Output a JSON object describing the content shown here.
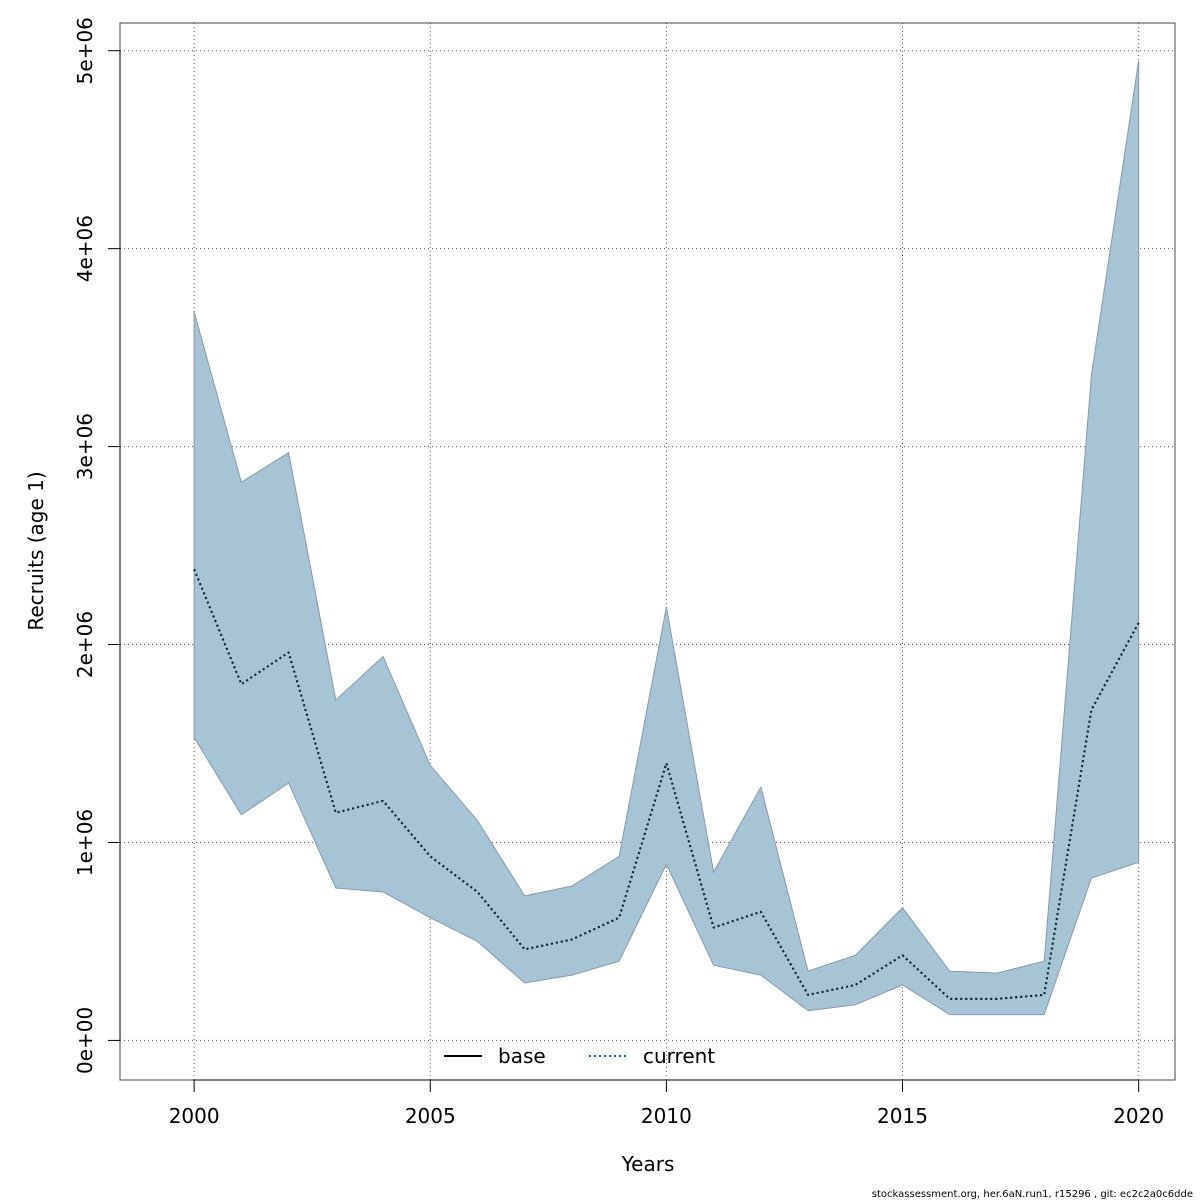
{
  "chart_data": {
    "type": "area",
    "title": "",
    "xlabel": "Years",
    "ylabel": "Recruits (age 1)",
    "xlim": [
      1998.43,
      2020.77
    ],
    "ylim": [
      -200000,
      5140000
    ],
    "grid": true,
    "x_ticks": [
      2000,
      2005,
      2010,
      2015,
      2020
    ],
    "x_tick_labels": [
      "2000",
      "2005",
      "2010",
      "2015",
      "2020"
    ],
    "y_ticks": [
      0,
      1000000,
      2000000,
      3000000,
      4000000,
      5000000
    ],
    "y_tick_labels": [
      "0e+00",
      "1e+06",
      "2e+06",
      "3e+06",
      "4e+06",
      "5e+06"
    ],
    "years": [
      2000,
      2001,
      2002,
      2003,
      2004,
      2005,
      2006,
      2007,
      2008,
      2009,
      2010,
      2011,
      2012,
      2013,
      2014,
      2015,
      2016,
      2017,
      2018,
      2019,
      2020
    ],
    "band": {
      "color": "#a6c4d5",
      "edge_color": "#8899a6",
      "upper": [
        3680000,
        2820000,
        2970000,
        1720000,
        1940000,
        1390000,
        1110000,
        730000,
        780000,
        930000,
        2190000,
        850000,
        1280000,
        350000,
        430000,
        670000,
        350000,
        340000,
        400000,
        3360000,
        4950000
      ],
      "lower": [
        1530000,
        1140000,
        1300000,
        770000,
        750000,
        620000,
        500000,
        290000,
        330000,
        400000,
        890000,
        380000,
        330000,
        150000,
        180000,
        280000,
        130000,
        130000,
        130000,
        820000,
        900000
      ]
    },
    "series": [
      {
        "name": "base",
        "style": "solid",
        "color": "#000000",
        "values": [
          2380000,
          1800000,
          1960000,
          1150000,
          1210000,
          930000,
          750000,
          460000,
          510000,
          620000,
          1400000,
          570000,
          650000,
          230000,
          280000,
          430000,
          210000,
          210000,
          230000,
          1670000,
          2110000
        ]
      },
      {
        "name": "current",
        "style": "dotted",
        "color": "#1f5f8b",
        "values": [
          2380000,
          1800000,
          1960000,
          1150000,
          1210000,
          930000,
          750000,
          460000,
          510000,
          620000,
          1400000,
          570000,
          650000,
          230000,
          280000,
          430000,
          210000,
          210000,
          230000,
          1670000,
          2110000
        ]
      }
    ],
    "legend": {
      "position": "bottom-center",
      "entries": [
        "base",
        "current"
      ]
    }
  },
  "footer": {
    "text": "stockassessment.org, her.6aN.run1, r15296 , git: ec2c2a0c6dde"
  }
}
